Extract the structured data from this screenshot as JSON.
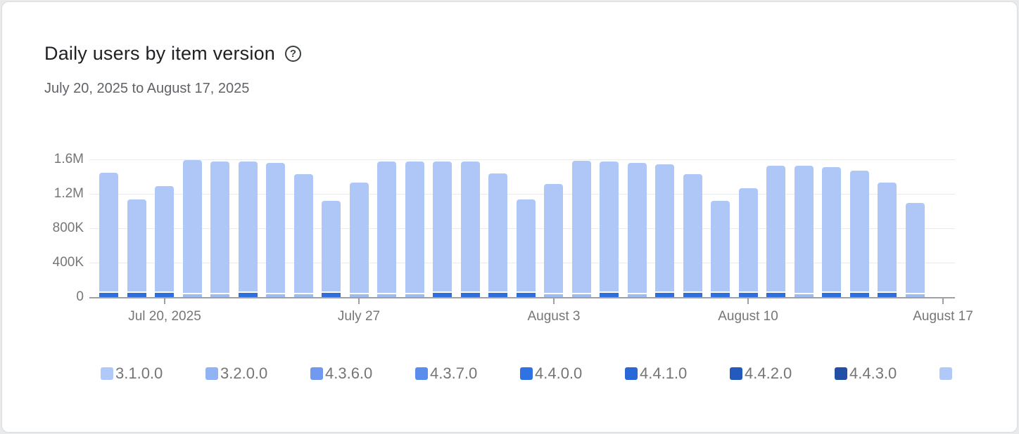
{
  "page": {
    "background": "#e9eaec",
    "card_background": "#ffffff"
  },
  "header": {
    "title": "Daily users by item version",
    "help_icon_glyph": "?",
    "date_range": "July 20, 2025 to August 17, 2025"
  },
  "colors": {
    "bar_main": "#aec7f6",
    "bottom_dark": "#2e6fdd",
    "bottom_pale": "#9dbdf2",
    "axis": "#9da1a6",
    "gridline": "#ebebeb",
    "axis_text": "#767676",
    "legend_text": "#757575",
    "title_text": "#202124",
    "subtitle_text": "#5f6368"
  },
  "chart_data": {
    "type": "bar",
    "subtype": "stacked-daily-columns",
    "title": "Daily users by item version",
    "date_range": "July 20, 2025 to August 17, 2025",
    "ylabel": "",
    "xlabel": "",
    "grid": true,
    "legend_position": "bottom",
    "y_axis": {
      "min": 0,
      "max": 1600000,
      "tick_labels": [
        "1.6M",
        "1.2M",
        "800K",
        "400K",
        "0"
      ],
      "tick_values": [
        1600000,
        1200000,
        800000,
        400000,
        0
      ],
      "gridline_values": [
        1600000,
        1200000,
        800000,
        400000
      ]
    },
    "x_axis": {
      "ticks": [
        {
          "label": "Jul 20, 2025",
          "bar_index": 2
        },
        {
          "label": "July 27",
          "bar_index": 9
        },
        {
          "label": "August 3",
          "bar_index": 16
        },
        {
          "label": "August 10",
          "bar_index": 23
        },
        {
          "label": "August 17",
          "bar_index": 30
        }
      ]
    },
    "legend": [
      {
        "label": "3.1.0.0",
        "color": "#b1c9f8"
      },
      {
        "label": "3.2.0.0",
        "color": "#8fb3f3"
      },
      {
        "label": "4.3.6.0",
        "color": "#7099ef"
      },
      {
        "label": "4.3.7.0",
        "color": "#5b8def"
      },
      {
        "label": "4.4.0.0",
        "color": "#2e72e4"
      },
      {
        "label": "4.4.1.0",
        "color": "#2a68d8"
      },
      {
        "label": "4.4.2.0",
        "color": "#2459bd"
      },
      {
        "label": "4.4.3.0",
        "color": "#2150a5"
      },
      {
        "label": "",
        "color": "#b1c9f8",
        "clipped": true
      }
    ],
    "bottom_segment_values": {
      "dark": 45000,
      "pale": 30000
    },
    "bars": [
      {
        "date": "Jul 18",
        "total": 1450000,
        "bottom": "dark"
      },
      {
        "date": "Jul 19",
        "total": 1140000,
        "bottom": "dark"
      },
      {
        "date": "Jul 20",
        "total": 1290000,
        "bottom": "dark"
      },
      {
        "date": "Jul 21",
        "total": 1595000,
        "bottom": "pale"
      },
      {
        "date": "Jul 22",
        "total": 1580000,
        "bottom": "pale"
      },
      {
        "date": "Jul 23",
        "total": 1580000,
        "bottom": "dark"
      },
      {
        "date": "Jul 24",
        "total": 1565000,
        "bottom": "pale"
      },
      {
        "date": "Jul 25",
        "total": 1430000,
        "bottom": "pale"
      },
      {
        "date": "Jul 26",
        "total": 1120000,
        "bottom": "dark"
      },
      {
        "date": "Jul 27",
        "total": 1330000,
        "bottom": "pale"
      },
      {
        "date": "Jul 28",
        "total": 1580000,
        "bottom": "pale"
      },
      {
        "date": "Jul 29",
        "total": 1580000,
        "bottom": "pale"
      },
      {
        "date": "Jul 30",
        "total": 1580000,
        "bottom": "dark"
      },
      {
        "date": "Jul 31",
        "total": 1575000,
        "bottom": "dark"
      },
      {
        "date": "Aug 1",
        "total": 1440000,
        "bottom": "dark"
      },
      {
        "date": "Aug 2",
        "total": 1140000,
        "bottom": "dark"
      },
      {
        "date": "Aug 3",
        "total": 1320000,
        "bottom": "pale"
      },
      {
        "date": "Aug 4",
        "total": 1585000,
        "bottom": "pale"
      },
      {
        "date": "Aug 5",
        "total": 1580000,
        "bottom": "dark"
      },
      {
        "date": "Aug 6",
        "total": 1560000,
        "bottom": "pale"
      },
      {
        "date": "Aug 7",
        "total": 1550000,
        "bottom": "dark"
      },
      {
        "date": "Aug 8",
        "total": 1430000,
        "bottom": "dark"
      },
      {
        "date": "Aug 9",
        "total": 1120000,
        "bottom": "dark"
      },
      {
        "date": "Aug 10",
        "total": 1270000,
        "bottom": "dark"
      },
      {
        "date": "Aug 11",
        "total": 1530000,
        "bottom": "dark"
      },
      {
        "date": "Aug 12",
        "total": 1530000,
        "bottom": "pale"
      },
      {
        "date": "Aug 13",
        "total": 1510000,
        "bottom": "dark"
      },
      {
        "date": "Aug 14",
        "total": 1470000,
        "bottom": "dark"
      },
      {
        "date": "Aug 15",
        "total": 1330000,
        "bottom": "dark"
      },
      {
        "date": "Aug 16",
        "total": 1100000,
        "bottom": "pale"
      }
    ]
  }
}
